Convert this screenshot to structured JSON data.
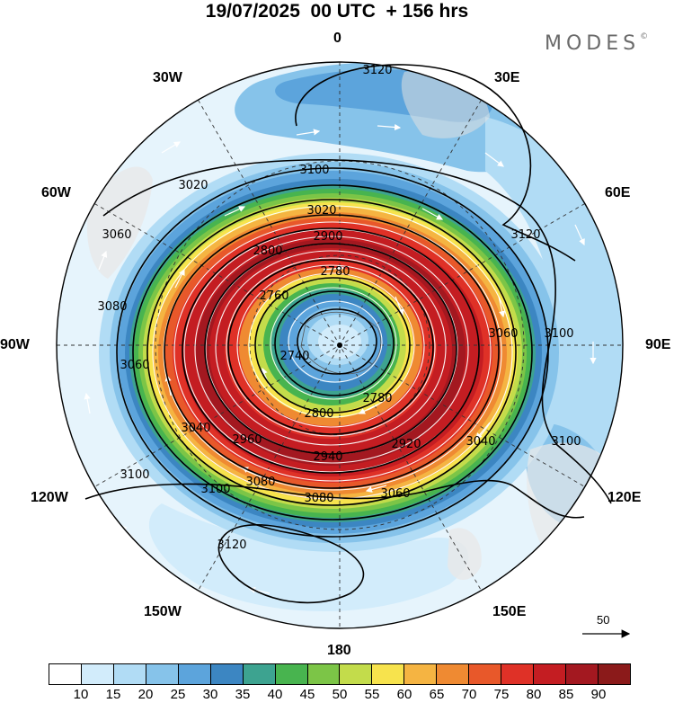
{
  "title": "19/07/2025  00 UTC  + 156 hrs",
  "brand": {
    "name": "MODES",
    "mark": "©"
  },
  "longitude_labels": {
    "top": "0",
    "e30": "30E",
    "w30": "30W",
    "e60": "60E",
    "w60": "60W",
    "e90": "90E",
    "w90": "90W",
    "e120": "120E",
    "w120": "120W",
    "e150": "150E",
    "w150": "150W",
    "bottom": "180"
  },
  "contour_labels": [
    "3120",
    "3100",
    "3120",
    "3100",
    "3080",
    "3060",
    "3100",
    "3080",
    "3060",
    "3040",
    "3020",
    "2900",
    "2800",
    "2780",
    "2760",
    "2740",
    "2780",
    "2800",
    "2920",
    "2940",
    "2960",
    "3060",
    "3100",
    "3080",
    "3060",
    "3100",
    "3120",
    "3040",
    "3020"
  ],
  "reference_vector": {
    "value": "50"
  },
  "colorbar": {
    "colors": [
      "#ffffff",
      "#d2ecfb",
      "#b1dcf5",
      "#86c3ea",
      "#5ca4dc",
      "#3c86c2",
      "#3da390",
      "#48b44f",
      "#7cc547",
      "#c3dc4b",
      "#f7e34d",
      "#f5b442",
      "#ef8a32",
      "#e8582a",
      "#df3127",
      "#c41d22",
      "#a31820",
      "#8b1a1a"
    ],
    "ticks": [
      "10",
      "15",
      "20",
      "25",
      "30",
      "35",
      "40",
      "45",
      "50",
      "55",
      "60",
      "65",
      "70",
      "75",
      "80",
      "85",
      "90"
    ]
  }
}
